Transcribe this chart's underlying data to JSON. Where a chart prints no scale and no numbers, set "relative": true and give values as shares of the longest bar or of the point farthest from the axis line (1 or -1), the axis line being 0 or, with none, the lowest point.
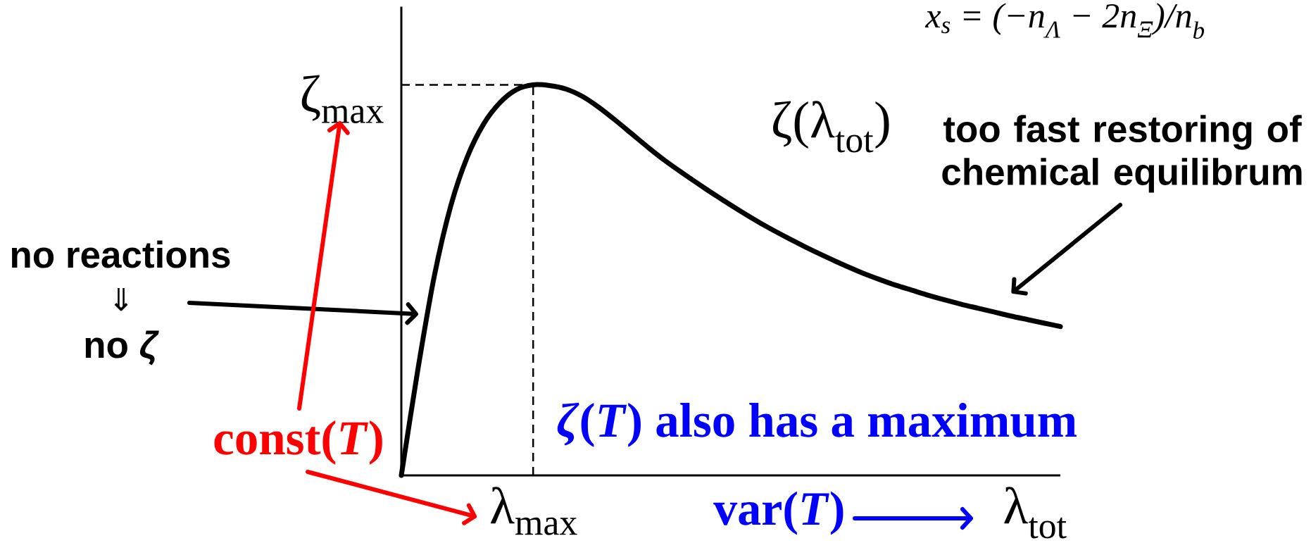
{
  "chart_data": {
    "type": "line",
    "relative": true,
    "categories": [
      null,
      null,
      null,
      null,
      null,
      null,
      null,
      null,
      null,
      null,
      null,
      null,
      null,
      null,
      null,
      null,
      null,
      null,
      null,
      null,
      null,
      null,
      null,
      null,
      null,
      null,
      null,
      null,
      null,
      null,
      null,
      null,
      null,
      null,
      null,
      null,
      null,
      null,
      null,
      null,
      null
    ],
    "xlabel": "λ$_{tot}$",
    "series": [
      {
        "name": "ζ(λ$_{tot}$)",
        "color": "#000000",
        "values": [
          0,
          0.27,
          0.51,
          0.69,
          0.815,
          0.9,
          0.955,
          0.988,
          1,
          0.998,
          0.989,
          0.97,
          0.942,
          0.909,
          0.874,
          0.839,
          0.806,
          0.776,
          0.747,
          0.719,
          0.692,
          0.666,
          0.641,
          0.618,
          0.596,
          0.575,
          0.555,
          0.536,
          0.518,
          0.502,
          0.487,
          0.474,
          0.461,
          0.449,
          0.438,
          0.428,
          0.418,
          0.408,
          0.399,
          0.39,
          0.381
        ]
      }
    ],
    "ref_lines": [
      {
        "axis": "y",
        "value": 1,
        "label": "ζ$_{max}$",
        "line_style": "dashed",
        "color": "#000000"
      }
    ],
    "annotations": [
      "x$_{s}$ = (−n$_{Λ}$ − 2n$_{Ξ}$)/n$_{b}$",
      "too fast restoring of chemical equilibrum",
      "no reactions",
      "⇓",
      "no *ζ*",
      "const(*T*)",
      "*ζ*(*T*) also has a maximum",
      "var(*T*)",
      "λ$_{max}$"
    ]
  }
}
